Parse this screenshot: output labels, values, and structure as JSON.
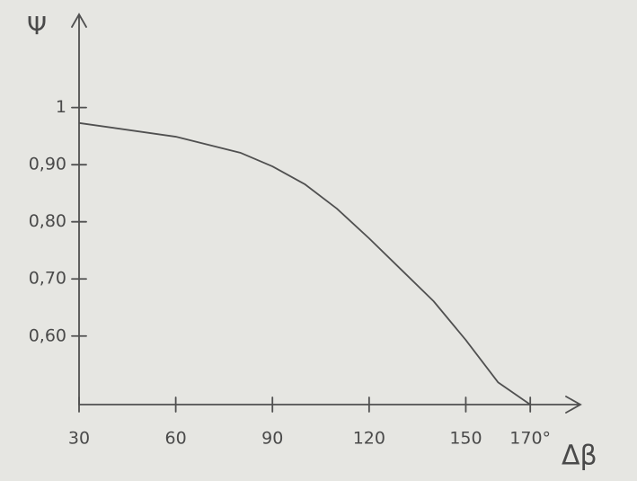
{
  "chart_data": {
    "type": "line",
    "x_label": "Δβ",
    "y_label": "Ψ",
    "x": [
      30,
      60,
      80,
      90,
      100,
      110,
      120,
      130,
      140,
      150,
      160,
      170
    ],
    "series": [
      {
        "color": "#505050",
        "values": [
          0.973,
          0.949,
          0.921,
          0.897,
          0.866,
          0.823,
          0.771,
          0.716,
          0.661,
          0.593,
          0.519,
          0.48
        ]
      }
    ],
    "xlim": [
      30,
      185
    ],
    "xticks": [
      30,
      60,
      90,
      120,
      150,
      {
        "value": 170,
        "label": "170°"
      }
    ],
    "ylim": [
      0.48,
      1.16
    ],
    "yticks": [
      {
        "value": 0.6,
        "label": "0,60"
      },
      {
        "value": 0.7,
        "label": "0,70"
      },
      {
        "value": 0.8,
        "label": "0,80"
      },
      {
        "value": 0.9,
        "label": "0,90"
      },
      1
    ]
  }
}
